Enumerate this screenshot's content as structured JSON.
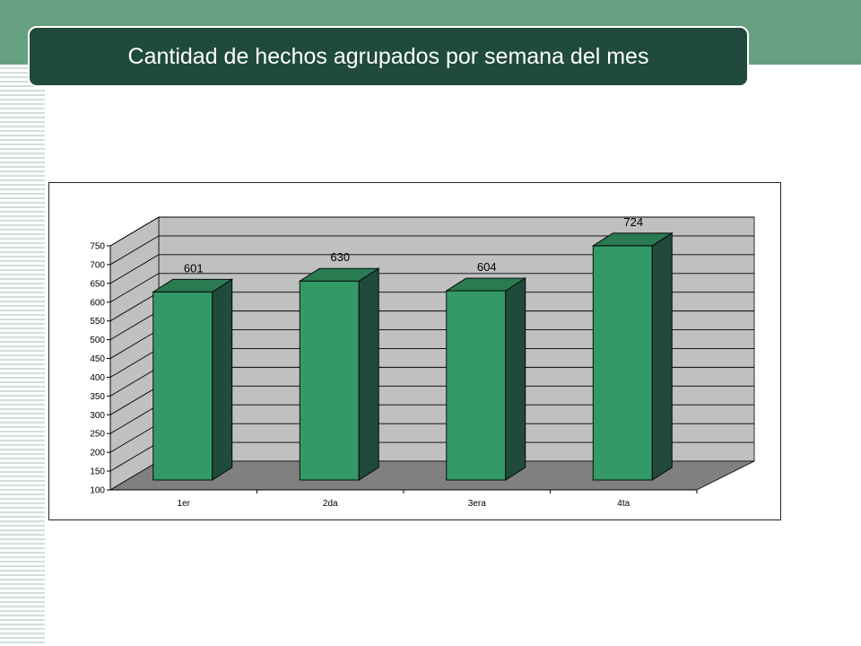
{
  "slide": {
    "title": "Cantidad de hechos agrupados por semana del mes",
    "colors": {
      "top_band": "#66a080",
      "title_bar": "#1f4a3c",
      "bar_front": "#339966",
      "bar_side": "#1f4a3c",
      "bar_top": "#2a7a52",
      "wall": "#c0c0c0",
      "floor": "#808080"
    }
  },
  "chart_data": {
    "type": "bar",
    "style": "3d-column",
    "title": "",
    "xlabel": "",
    "ylabel": "",
    "categories": [
      "1er",
      "2da",
      "3era",
      "4ta"
    ],
    "values": [
      601,
      630,
      604,
      724
    ],
    "data_labels": [
      "601",
      "630",
      "604",
      "724"
    ],
    "ylim": [
      100,
      750
    ],
    "y_ticks": [
      100,
      150,
      200,
      250,
      300,
      350,
      400,
      450,
      500,
      550,
      600,
      650,
      700,
      750
    ],
    "y_tick_labels": [
      "100",
      "150",
      "200",
      "250",
      "300",
      "350",
      "400",
      "450",
      "500",
      "550",
      "600",
      "650",
      "700",
      "750"
    ],
    "grid": true,
    "legend": "none"
  }
}
